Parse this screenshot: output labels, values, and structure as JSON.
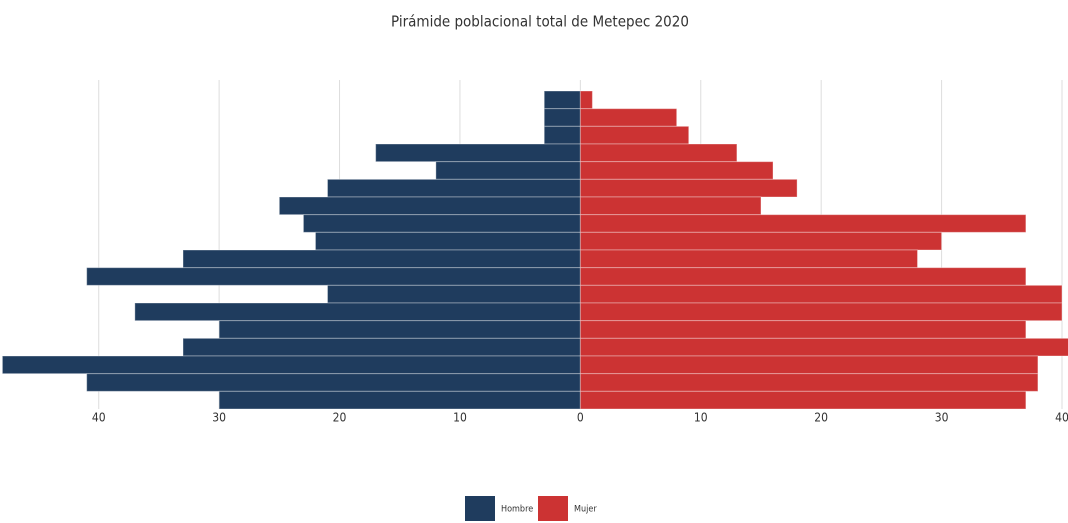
{
  "chart_data": {
    "type": "pyramid",
    "title": "Pirámide poblacional total de Metepec 2020",
    "categories": [
      null,
      null,
      null,
      null,
      null,
      null,
      null,
      null,
      null,
      null,
      null,
      null,
      null,
      null,
      null,
      null,
      null,
      null
    ],
    "series": [
      {
        "name": "Hombre",
        "color": "#1f3c5e",
        "values": [
          -3,
          -3,
          -3,
          -17,
          -12,
          -21,
          -25,
          -23,
          -22,
          -33,
          -41,
          -21,
          -37,
          -30,
          -33,
          -48,
          -41,
          -30
        ]
      },
      {
        "name": "Mujer",
        "color": "#cc3333",
        "values": [
          1,
          8,
          9,
          13,
          16,
          18,
          15,
          37,
          30,
          28,
          37,
          40,
          40,
          37,
          41,
          38,
          38,
          37
        ]
      }
    ],
    "xlim": [
      -48.2,
      40.5
    ],
    "xticks": [
      {
        "value": -40,
        "label": "40"
      },
      {
        "value": -30,
        "label": "30"
      },
      {
        "value": -20,
        "label": "20"
      },
      {
        "value": -10,
        "label": "10"
      },
      0,
      10,
      20,
      30,
      40
    ],
    "grid": true,
    "legend": "bottom"
  }
}
